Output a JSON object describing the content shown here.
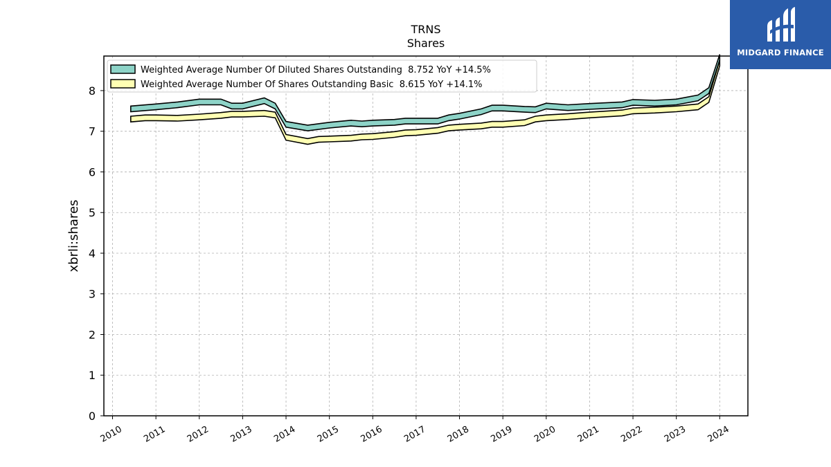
{
  "logo": {
    "text": "MIDGARD FINANCE"
  },
  "chart_data": {
    "type": "area",
    "title": "TRNS",
    "subtitle": "Shares",
    "xlabel": "",
    "ylabel": "xbrli:shares",
    "xlim": [
      2009.8,
      2024.65
    ],
    "ylim": [
      0,
      8.85
    ],
    "x_ticks": [
      "2010",
      "2011",
      "2012",
      "2013",
      "2014",
      "2015",
      "2016",
      "2017",
      "2018",
      "2019",
      "2020",
      "2021",
      "2022",
      "2023",
      "2024"
    ],
    "y_ticks": [
      "0",
      "1",
      "2",
      "3",
      "4",
      "5",
      "6",
      "7",
      "8"
    ],
    "grid": true,
    "legend_position": "top-left",
    "colors": {
      "diluted_fill": "#8dd3c7",
      "basic_fill": "#ffffb3",
      "edge": "#000000",
      "grid": "#b0b0b0"
    },
    "series": [
      {
        "name": "Weighted Average Number Of Diluted Shares Outstanding  8.752 YoY +14.5%",
        "color": "#8dd3c7",
        "points": [
          [
            2010.42,
            7.55
          ],
          [
            2011.0,
            7.6
          ],
          [
            2011.5,
            7.65
          ],
          [
            2012.0,
            7.72
          ],
          [
            2012.5,
            7.72
          ],
          [
            2012.75,
            7.62
          ],
          [
            2013.0,
            7.62
          ],
          [
            2013.5,
            7.75
          ],
          [
            2013.75,
            7.62
          ],
          [
            2014.0,
            7.17
          ],
          [
            2014.5,
            7.08
          ],
          [
            2015.0,
            7.15
          ],
          [
            2015.5,
            7.2
          ],
          [
            2015.75,
            7.18
          ],
          [
            2016.0,
            7.2
          ],
          [
            2016.5,
            7.22
          ],
          [
            2016.75,
            7.25
          ],
          [
            2017.0,
            7.25
          ],
          [
            2017.5,
            7.25
          ],
          [
            2017.75,
            7.33
          ],
          [
            2018.0,
            7.37
          ],
          [
            2018.5,
            7.48
          ],
          [
            2018.75,
            7.57
          ],
          [
            2019.0,
            7.57
          ],
          [
            2019.5,
            7.54
          ],
          [
            2019.75,
            7.53
          ],
          [
            2020.0,
            7.62
          ],
          [
            2020.5,
            7.58
          ],
          [
            2021.0,
            7.61
          ],
          [
            2021.75,
            7.65
          ],
          [
            2022.0,
            7.71
          ],
          [
            2022.5,
            7.69
          ],
          [
            2023.0,
            7.72
          ],
          [
            2023.5,
            7.82
          ],
          [
            2023.75,
            8.0
          ],
          [
            2024.0,
            8.82
          ]
        ]
      },
      {
        "name": "Weighted Average Number Of Shares Outstanding Basic  8.615 YoY +14.1%",
        "color": "#ffffb3",
        "points": [
          [
            2010.42,
            7.3
          ],
          [
            2010.75,
            7.33
          ],
          [
            2011.0,
            7.33
          ],
          [
            2011.5,
            7.32
          ],
          [
            2012.0,
            7.35
          ],
          [
            2012.5,
            7.39
          ],
          [
            2012.75,
            7.42
          ],
          [
            2013.0,
            7.42
          ],
          [
            2013.5,
            7.44
          ],
          [
            2013.75,
            7.4
          ],
          [
            2014.0,
            6.85
          ],
          [
            2014.5,
            6.75
          ],
          [
            2014.75,
            6.8
          ],
          [
            2015.0,
            6.81
          ],
          [
            2015.5,
            6.83
          ],
          [
            2015.75,
            6.86
          ],
          [
            2016.0,
            6.87
          ],
          [
            2016.5,
            6.92
          ],
          [
            2016.75,
            6.96
          ],
          [
            2017.0,
            6.97
          ],
          [
            2017.5,
            7.02
          ],
          [
            2017.75,
            7.08
          ],
          [
            2018.0,
            7.1
          ],
          [
            2018.5,
            7.13
          ],
          [
            2018.75,
            7.17
          ],
          [
            2019.0,
            7.17
          ],
          [
            2019.5,
            7.21
          ],
          [
            2019.75,
            7.3
          ],
          [
            2020.0,
            7.33
          ],
          [
            2020.5,
            7.36
          ],
          [
            2021.0,
            7.4
          ],
          [
            2021.75,
            7.45
          ],
          [
            2022.0,
            7.5
          ],
          [
            2022.5,
            7.52
          ],
          [
            2023.0,
            7.55
          ],
          [
            2023.5,
            7.6
          ],
          [
            2023.75,
            7.78
          ],
          [
            2024.0,
            8.68
          ]
        ]
      }
    ]
  }
}
